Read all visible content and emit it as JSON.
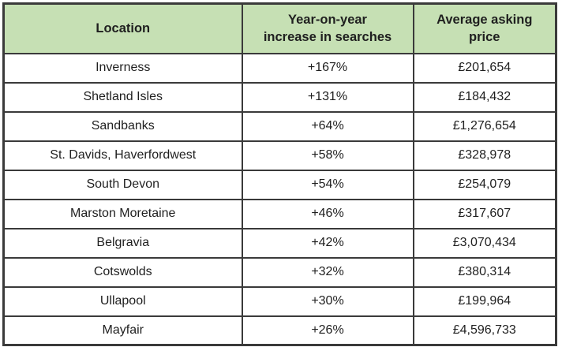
{
  "colors": {
    "header_bg": "#c6e0b4",
    "border": "#3a3a3a",
    "text": "#1f1f1f",
    "page_bg": "#ffffff"
  },
  "header_labels": {
    "location": "Location",
    "increase": "Year-on-year\nincrease in searches",
    "price": "Average asking\nprice"
  },
  "chart_data": {
    "type": "table",
    "columns": [
      "Location",
      "Year-on-year increase in searches",
      "Average asking price"
    ],
    "rows": [
      {
        "location": "Inverness",
        "increase": "+167%",
        "price": "£201,654"
      },
      {
        "location": "Shetland Isles",
        "increase": "+131%",
        "price": "£184,432"
      },
      {
        "location": "Sandbanks",
        "increase": "+64%",
        "price": "£1,276,654"
      },
      {
        "location": "St. Davids, Haverfordwest",
        "increase": "+58%",
        "price": "£328,978"
      },
      {
        "location": "South Devon",
        "increase": "+54%",
        "price": "£254,079"
      },
      {
        "location": "Marston Moretaine",
        "increase": "+46%",
        "price": "£317,607"
      },
      {
        "location": "Belgravia",
        "increase": "+42%",
        "price": "£3,070,434"
      },
      {
        "location": "Cotswolds",
        "increase": "+32%",
        "price": "£380,314"
      },
      {
        "location": "Ullapool",
        "increase": "+30%",
        "price": "£199,964"
      },
      {
        "location": "Mayfair",
        "increase": "+26%",
        "price": "£4,596,733"
      }
    ]
  }
}
